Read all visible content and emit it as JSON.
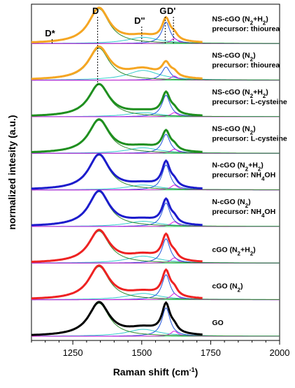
{
  "chart_data": {
    "type": "line",
    "xlabel": "Raman shift (cm",
    "xlabel_sup": "-1",
    "xlabel_end": ")",
    "ylabel": "normalized intesity (a.u.)",
    "xlim": [
      1100,
      2000
    ],
    "x_ticks": [
      1250,
      1500,
      1750,
      2000
    ],
    "x_tick_labels": [
      "1250",
      "1500",
      "1750",
      "2000"
    ],
    "colors": {
      "fit_green": "#2e8b2e",
      "cyan": "#33cccc",
      "blue": "#2255dd",
      "magenta": "#dd22dd",
      "baseline": "#33cc66"
    },
    "peak_markers": [
      {
        "name": "D*",
        "x": 1175
      },
      {
        "name": "D",
        "x": 1340
      },
      {
        "name": "D\"",
        "x": 1500
      },
      {
        "name": "G",
        "x": 1585
      },
      {
        "name": "D'",
        "x": 1615
      }
    ],
    "spectra": [
      {
        "label": "NS-cGO (N2+H2)",
        "label_parts": [
          [
            "NS-cGO (N",
            ""
          ],
          [
            "2",
            "sub"
          ],
          [
            "+H",
            ""
          ],
          [
            "2",
            "sub"
          ],
          [
            ")",
            ""
          ]
        ],
        "precursor_parts": [
          [
            "precursor: thiourea",
            ""
          ]
        ],
        "color": "#f5a623",
        "peaks": {
          "D": 1.0,
          "Dpp": 0.18,
          "G": 0.62,
          "Dp": 0.15
        }
      },
      {
        "label": "NS-cGO (N2)",
        "label_parts": [
          [
            "NS-cGO (N",
            ""
          ],
          [
            "2",
            "sub"
          ],
          [
            ")",
            ""
          ]
        ],
        "precursor_parts": [
          [
            "precursor: thiourea",
            ""
          ]
        ],
        "color": "#f5a623",
        "peaks": {
          "D": 0.92,
          "Dpp": 0.28,
          "G": 0.38,
          "Dp": 0.12
        }
      },
      {
        "label": "NS-cGO (N2+H2)",
        "label_parts": [
          [
            "NS-cGO (N",
            ""
          ],
          [
            "2",
            "sub"
          ],
          [
            "+H",
            ""
          ],
          [
            "2",
            "sub"
          ],
          [
            ")",
            ""
          ]
        ],
        "precursor_parts": [
          [
            "precursor: L-cysteine",
            ""
          ]
        ],
        "color": "#1f8f1f",
        "peaks": {
          "D": 0.92,
          "Dpp": 0.12,
          "G": 0.62,
          "Dp": 0.12
        }
      },
      {
        "label": "NS-cGO (N2)",
        "label_parts": [
          [
            "NS-cGO (N",
            ""
          ],
          [
            "2",
            "sub"
          ],
          [
            ")",
            ""
          ]
        ],
        "precursor_parts": [
          [
            "precursor: L-cysteine",
            ""
          ]
        ],
        "color": "#1f8f1f",
        "peaks": {
          "D": 0.95,
          "Dpp": 0.16,
          "G": 0.55,
          "Dp": 0.12
        }
      },
      {
        "label": "N-cGO (N2+H2)",
        "label_parts": [
          [
            "N-cGO (N",
            ""
          ],
          [
            "2",
            "sub"
          ],
          [
            "+H",
            ""
          ],
          [
            "2",
            "sub"
          ],
          [
            ")",
            ""
          ]
        ],
        "precursor_parts": [
          [
            "precursor: NH",
            ""
          ],
          [
            "4",
            "sub"
          ],
          [
            "OH",
            ""
          ]
        ],
        "color": "#1c1ccc",
        "peaks": {
          "D": 1.0,
          "Dpp": 0.14,
          "G": 0.72,
          "Dp": 0.14
        }
      },
      {
        "label": "N-cGO (N2)",
        "label_parts": [
          [
            "N-cGO (N",
            ""
          ],
          [
            "2",
            "sub"
          ],
          [
            ")",
            ""
          ]
        ],
        "precursor_parts": [
          [
            "precursor: NH",
            ""
          ],
          [
            "4",
            "sub"
          ],
          [
            "OH",
            ""
          ]
        ],
        "color": "#1c1ccc",
        "peaks": {
          "D": 1.0,
          "Dpp": 0.15,
          "G": 0.68,
          "Dp": 0.14
        }
      },
      {
        "label": "cGO (N2+H2)",
        "label_parts": [
          [
            "cGO (N",
            ""
          ],
          [
            "2",
            "sub"
          ],
          [
            "+H",
            ""
          ],
          [
            "2",
            "sub"
          ],
          [
            ")",
            ""
          ]
        ],
        "precursor_parts": [],
        "color": "#ee2222",
        "peaks": {
          "D": 0.92,
          "Dpp": 0.2,
          "G": 0.7,
          "Dp": 0.15
        }
      },
      {
        "label": "cGO (N2)",
        "label_parts": [
          [
            "cGO (N",
            ""
          ],
          [
            "2",
            "sub"
          ],
          [
            ")",
            ""
          ]
        ],
        "precursor_parts": [],
        "color": "#ee2222",
        "peaks": {
          "D": 0.95,
          "Dpp": 0.18,
          "G": 0.72,
          "Dp": 0.18
        }
      },
      {
        "label": "GO",
        "label_parts": [
          [
            "GO",
            ""
          ]
        ],
        "precursor_parts": [],
        "color": "#000000",
        "peaks": {
          "D": 0.95,
          "Dpp": 0.2,
          "G": 0.82,
          "Dp": 0.15
        }
      }
    ]
  }
}
